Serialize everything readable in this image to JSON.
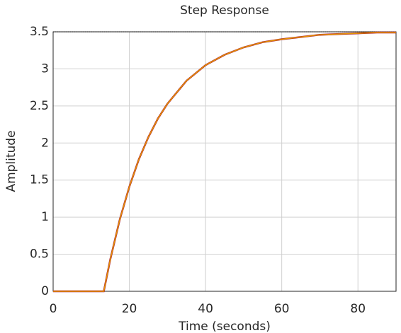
{
  "chart_data": {
    "type": "line",
    "title": "Step Response",
    "x_label": "Time (seconds)",
    "y_label": "Amplitude",
    "x": [
      0,
      13.3,
      15,
      17.5,
      20,
      22.5,
      25,
      27.5,
      30,
      35,
      40,
      45,
      50,
      55,
      60,
      65,
      70,
      75,
      80,
      85,
      90
    ],
    "series": [
      {
        "color": "#a2142f",
        "values": [
          0,
          0,
          0.43,
          0.97,
          1.41,
          1.78,
          2.08,
          2.33,
          2.53,
          2.84,
          3.05,
          3.19,
          3.29,
          3.36,
          3.4,
          3.43,
          3.46,
          3.47,
          3.48,
          3.49,
          3.49
        ]
      },
      {
        "color": "#e69500",
        "values": [
          0,
          0,
          0.43,
          0.97,
          1.41,
          1.78,
          2.08,
          2.33,
          2.53,
          2.84,
          3.05,
          3.19,
          3.29,
          3.36,
          3.4,
          3.43,
          3.46,
          3.47,
          3.48,
          3.49,
          3.49
        ]
      }
    ],
    "final_value": 3.5,
    "xlim": [
      0,
      90
    ],
    "ylim": [
      0,
      3.5
    ],
    "xticks": [
      0,
      20,
      40,
      60,
      80
    ],
    "yticks": [
      0,
      0.5,
      1,
      1.5,
      2,
      2.5,
      3,
      3.5
    ],
    "grid": true
  }
}
